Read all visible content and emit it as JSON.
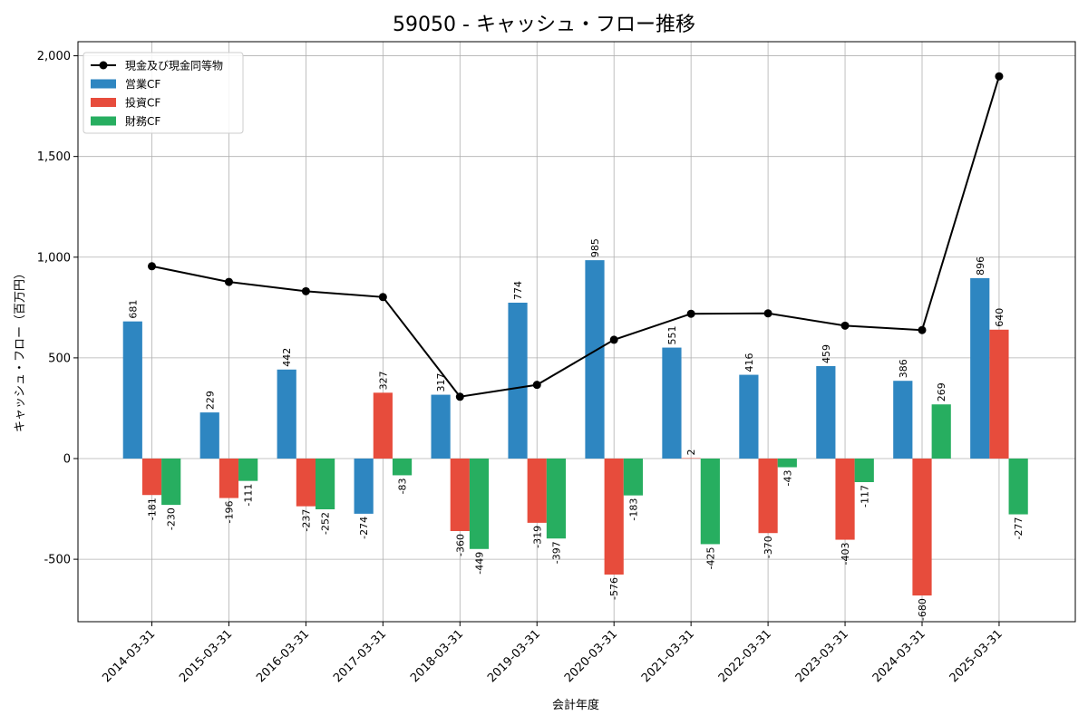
{
  "chart_data": {
    "type": "bar",
    "title": "59050 - キャッシュ・フロー推移",
    "xlabel": "会計年度",
    "ylabel": "キャッシュ・フロー（百万円）",
    "ylim": [
      -810,
      2070
    ],
    "yticks": [
      -500,
      0,
      500,
      1000,
      1500,
      2000
    ],
    "ytick_labels": [
      "-500",
      "0",
      "500",
      "1,000",
      "1,500",
      "2,000"
    ],
    "grid": true,
    "legend_position": "top-left",
    "categories": [
      "2014-03-31",
      "2015-03-31",
      "2016-03-31",
      "2017-03-31",
      "2018-03-31",
      "2019-03-31",
      "2020-03-31",
      "2021-03-31",
      "2022-03-31",
      "2023-03-31",
      "2024-03-31",
      "2025-03-31"
    ],
    "series": [
      {
        "name": "営業CF",
        "kind": "bar",
        "color": "#2e86c1",
        "values": [
          681,
          229,
          442,
          -274,
          317,
          774,
          985,
          551,
          416,
          459,
          386,
          896
        ]
      },
      {
        "name": "投資CF",
        "kind": "bar",
        "color": "#e74c3c",
        "values": [
          -181,
          -196,
          -237,
          327,
          -360,
          -319,
          -576,
          2,
          -370,
          -403,
          -680,
          640
        ]
      },
      {
        "name": "財務CF",
        "kind": "bar",
        "color": "#27ae60",
        "values": [
          -230,
          -111,
          -252,
          -83,
          -449,
          -397,
          -183,
          -425,
          -43,
          -117,
          269,
          -277
        ]
      },
      {
        "name": "現金及び現金同等物",
        "kind": "line",
        "color": "#000000",
        "values": [
          955,
          877,
          831,
          802,
          307,
          366,
          590,
          719,
          721,
          660,
          638,
          1898
        ]
      }
    ]
  }
}
